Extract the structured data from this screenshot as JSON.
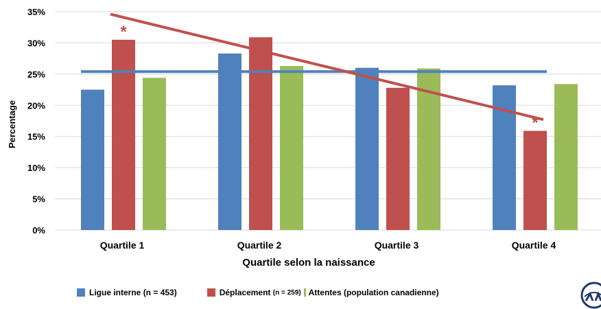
{
  "chart_data": {
    "type": "bar",
    "title": "",
    "xlabel": "Quartile selon la naissance",
    "ylabel": "Percentage",
    "ylim": [
      0,
      35
    ],
    "yticks": [
      "0%",
      "5%",
      "10%",
      "15%",
      "20%",
      "25%",
      "30%",
      "35%"
    ],
    "categories": [
      "Quartile 1",
      "Quartile 2",
      "Quartile 3",
      "Quartile 4"
    ],
    "series": [
      {
        "name": "Ligue interne",
        "name_suffix": "(n = 453)",
        "color": "#4f81bd",
        "values": [
          22.5,
          28.3,
          26.0,
          23.2
        ]
      },
      {
        "name": "Déplacement",
        "name_suffix": "(n = 259)",
        "color": "#c0504d",
        "values": [
          30.5,
          30.9,
          22.8,
          15.9
        ]
      },
      {
        "name": "Attentes (population canadienne)",
        "name_suffix": "",
        "color": "#9bbb59",
        "values": [
          24.4,
          26.3,
          25.9,
          23.4
        ]
      }
    ],
    "reference_line": {
      "value": 25.4,
      "color": "#4f81bd"
    },
    "trend_line": {
      "start": 34.6,
      "end": 17.7,
      "color": "#c0504d"
    },
    "annotations": [
      {
        "text": "*",
        "category": "Quartile 1",
        "series": "Déplacement",
        "color": "#c0504d"
      },
      {
        "text": "*",
        "category": "Quartile 4",
        "series": "Déplacement",
        "color": "#c0504d"
      }
    ],
    "grid": true,
    "legend_position": "bottom"
  }
}
